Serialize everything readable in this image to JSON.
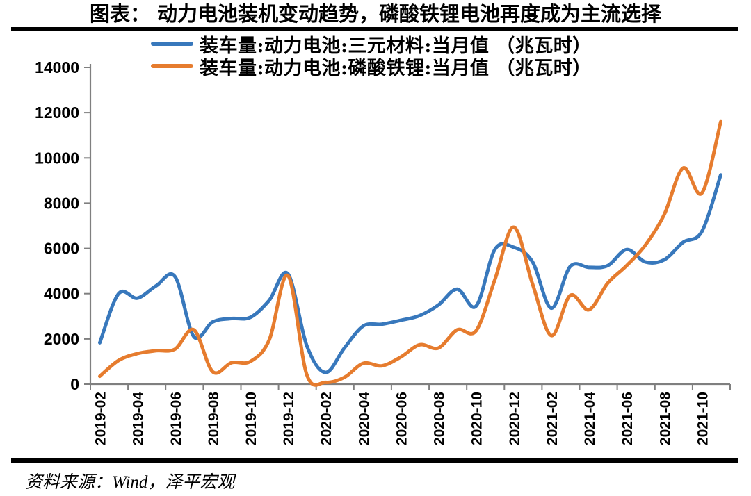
{
  "header": {
    "title": "图表： 动力电池装机变动趋势，磷酸铁锂电池再度成为主流选择"
  },
  "footer": {
    "source": "资料来源：Wind，泽平宏观"
  },
  "chart_data": {
    "type": "line",
    "title": "动力电池装机变动趋势，磷酸铁锂电池再度成为主流选择",
    "xlabel": "",
    "ylabel": "",
    "ylim": [
      0,
      14000
    ],
    "y_ticks": [
      0,
      2000,
      4000,
      6000,
      8000,
      10000,
      12000,
      14000
    ],
    "grid": false,
    "smooth": true,
    "legend_position": "top",
    "axis_color": "#7f7f7f",
    "x": [
      "2019-02",
      "2019-03",
      "2019-04",
      "2019-05",
      "2019-06",
      "2019-07",
      "2019-08",
      "2019-09",
      "2019-10",
      "2019-11",
      "2019-12",
      "2020-01",
      "2020-02",
      "2020-03",
      "2020-04",
      "2020-05",
      "2020-06",
      "2020-07",
      "2020-08",
      "2020-09",
      "2020-10",
      "2020-11",
      "2020-12",
      "2021-01",
      "2021-02",
      "2021-03",
      "2021-04",
      "2021-05",
      "2021-06",
      "2021-07",
      "2021-08",
      "2021-09",
      "2021-10",
      "2021-11"
    ],
    "x_tick_labels": [
      "2019-02",
      "2019-04",
      "2019-06",
      "2019-08",
      "2019-10",
      "2019-12",
      "2020-02",
      "2020-04",
      "2020-06",
      "2020-08",
      "2020-10",
      "2020-12",
      "2021-02",
      "2021-04",
      "2021-06",
      "2021-08",
      "2021-10"
    ],
    "series": [
      {
        "key": "ternary",
        "name": "装车量:动力电池:三元材料:当月值 （兆瓦时）",
        "color": "#3878BC",
        "values": [
          1830,
          4000,
          3800,
          4350,
          4750,
          2100,
          2750,
          2900,
          2950,
          3700,
          4880,
          1700,
          520,
          1600,
          2570,
          2650,
          2820,
          3030,
          3500,
          4200,
          3450,
          5960,
          6050,
          5400,
          3360,
          5200,
          5160,
          5240,
          5950,
          5400,
          5500,
          6270,
          6750,
          9250
        ]
      },
      {
        "key": "lfp",
        "name": "装车量:动力电池:磷酸铁锂:当月值 （兆瓦时）",
        "color": "#E67C2E",
        "values": [
          350,
          1050,
          1350,
          1480,
          1550,
          2400,
          550,
          950,
          1000,
          1950,
          4800,
          420,
          80,
          300,
          920,
          810,
          1200,
          1740,
          1600,
          2400,
          2360,
          4630,
          6940,
          4420,
          2150,
          3920,
          3290,
          4470,
          5240,
          6150,
          7500,
          9550,
          8450,
          11600
        ]
      }
    ]
  }
}
